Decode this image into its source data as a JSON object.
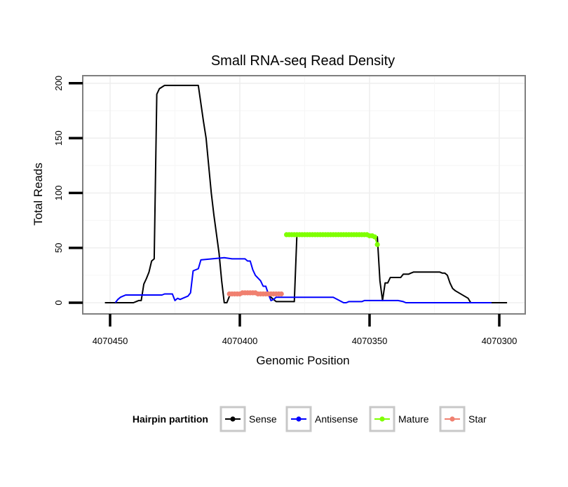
{
  "chart_data": {
    "type": "line",
    "title": "Small RNA-seq Read Density",
    "xlabel": "Genomic Position",
    "ylabel": "Total Reads",
    "x_reversed": true,
    "xlim": [
      4070455,
      4070295
    ],
    "ylim": [
      -10,
      210
    ],
    "x_ticks": [
      4070450,
      4070400,
      4070350,
      4070300
    ],
    "x_tick_labels": [
      "4070450",
      "4070400",
      "4070350",
      "4070300"
    ],
    "y_ticks": [
      0,
      50,
      100,
      150,
      200
    ],
    "y_tick_labels": [
      "0",
      "50",
      "100",
      "150",
      "200"
    ],
    "grid": true,
    "legend": {
      "title": "Hairpin partition",
      "position": "bottom",
      "entries": [
        "Sense",
        "Antisense",
        "Mature",
        "Star"
      ]
    },
    "series": [
      {
        "name": "Sense",
        "color": "#000000",
        "marker": false,
        "x": [
          4070452,
          4070441,
          4070439,
          4070438,
          4070437,
          4070436,
          4070435,
          4070434,
          4070433,
          4070432,
          4070431,
          4070429,
          4070427,
          4070416,
          4070414,
          4070413,
          4070412,
          4070411,
          4070410,
          4070408,
          4070407,
          4070406,
          4070405,
          4070404,
          4070403,
          4070402,
          4070401,
          4070399,
          4070398,
          4070397,
          4070396,
          4070395,
          4070393,
          4070391,
          4070390,
          4070388,
          4070386,
          4070384,
          4070382,
          4070380,
          4070379,
          4070378,
          4070372,
          4070371,
          4070349,
          4070348,
          4070347,
          4070346,
          4070345,
          4070344,
          4070343,
          4070342,
          4070338,
          4070337,
          4070335,
          4070334,
          4070333,
          4070323,
          4070322,
          4070321,
          4070320,
          4070319,
          4070318,
          4070317,
          4070312,
          4070311,
          4070297
        ],
        "y": [
          0,
          0,
          2,
          2,
          17,
          22,
          28,
          38,
          40,
          190,
          195,
          198,
          198,
          198,
          165,
          150,
          125,
          100,
          80,
          45,
          20,
          0,
          0,
          6,
          8,
          8,
          8,
          8,
          8,
          8,
          8,
          8,
          8,
          8,
          8,
          5,
          1,
          1,
          1,
          1,
          1,
          62,
          62,
          62,
          62,
          60,
          60,
          20,
          2,
          18,
          18,
          23,
          23,
          26,
          26,
          27,
          28,
          28,
          27,
          27,
          25,
          18,
          13,
          11,
          4,
          0,
          0
        ]
      },
      {
        "name": "Antisense",
        "color": "#0000ff",
        "marker": false,
        "x": [
          4070448,
          4070447,
          4070446,
          4070445,
          4070444,
          4070430,
          4070429,
          4070426,
          4070425,
          4070424,
          4070423,
          4070422,
          4070420,
          4070419,
          4070418,
          4070417,
          4070416,
          4070415,
          4070406,
          4070403,
          4070402,
          4070401,
          4070398,
          4070397,
          4070396,
          4070395,
          4070394,
          4070392,
          4070391,
          4070390,
          4070389,
          4070388,
          4070387,
          4070386,
          4070365,
          4070364,
          4070360,
          4070359,
          4070358,
          4070353,
          4070352,
          4070341,
          4070340,
          4070339,
          4070337,
          4070336,
          4070335,
          4070303
        ],
        "y": [
          0,
          3,
          5,
          6,
          7,
          7,
          8,
          8,
          2,
          4,
          3,
          4,
          6,
          9,
          29,
          30,
          31,
          39,
          41,
          40,
          40,
          40,
          40,
          38,
          38,
          30,
          25,
          20,
          15,
          15,
          8,
          2,
          3,
          5,
          5,
          5,
          0,
          0,
          1,
          1,
          2,
          2,
          2,
          2,
          1,
          0,
          0,
          0
        ]
      },
      {
        "name": "Mature",
        "color": "#7fff00",
        "marker": true,
        "x": [
          4070382,
          4070381,
          4070380,
          4070379,
          4070378,
          4070377,
          4070376,
          4070375,
          4070374,
          4070373,
          4070372,
          4070371,
          4070370,
          4070369,
          4070368,
          4070367,
          4070366,
          4070365,
          4070364,
          4070363,
          4070362,
          4070361,
          4070360,
          4070359,
          4070358,
          4070357,
          4070356,
          4070355,
          4070354,
          4070353,
          4070352,
          4070351,
          4070350,
          4070349,
          4070348,
          4070347
        ],
        "y": [
          62,
          62,
          62,
          62,
          62,
          62,
          62,
          62,
          62,
          62,
          62,
          62,
          62,
          62,
          62,
          62,
          62,
          62,
          62,
          62,
          62,
          62,
          62,
          62,
          62,
          62,
          62,
          62,
          62,
          62,
          62,
          62,
          61,
          61,
          60,
          53
        ]
      },
      {
        "name": "Star",
        "color": "#f08070",
        "marker": true,
        "x": [
          4070404,
          4070403,
          4070402,
          4070401,
          4070400,
          4070399,
          4070398,
          4070397,
          4070396,
          4070395,
          4070394,
          4070393,
          4070392,
          4070391,
          4070390,
          4070389,
          4070388,
          4070387,
          4070386,
          4070385,
          4070384
        ],
        "y": [
          8,
          8,
          8,
          8,
          8,
          9,
          9,
          9,
          9,
          9,
          9,
          8,
          8,
          8,
          8,
          8,
          8,
          8,
          8,
          8,
          8
        ]
      }
    ]
  }
}
